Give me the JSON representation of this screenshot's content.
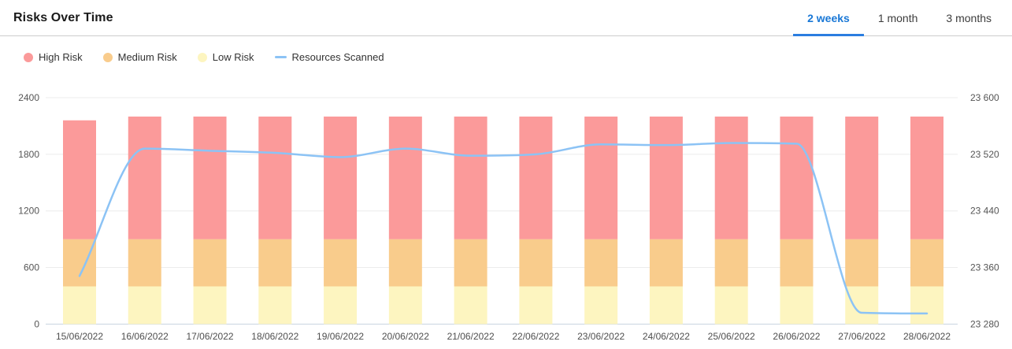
{
  "header": {
    "title": "Risks Over Time",
    "tabs": [
      {
        "label": "2 weeks",
        "active": true
      },
      {
        "label": "1 month",
        "active": false
      },
      {
        "label": "3 months",
        "active": false
      }
    ]
  },
  "legend": [
    {
      "label": "High Risk",
      "type": "circle",
      "color": "#fb9a9a"
    },
    {
      "label": "Medium Risk",
      "type": "circle",
      "color": "#f9cc8c"
    },
    {
      "label": "Low Risk",
      "type": "circle",
      "color": "#fdf5c0"
    },
    {
      "label": "Resources Scanned",
      "type": "line",
      "color": "#8cc3f5"
    }
  ],
  "colors": {
    "high_risk": "#fb9a9a",
    "medium_risk": "#f9cc8c",
    "low_risk": "#fdf5c0",
    "line": "#8cc3f5",
    "grid": "#ececec",
    "zero_line": "#c8d2e0",
    "active_tab": "#1877d6"
  },
  "chart_data": {
    "type": "bar",
    "subtype": "stacked-bars-with-line-overlay",
    "categories": [
      "15/06/2022",
      "16/06/2022",
      "17/06/2022",
      "18/06/2022",
      "19/06/2022",
      "20/06/2022",
      "21/06/2022",
      "22/06/2022",
      "23/06/2022",
      "24/06/2022",
      "25/06/2022",
      "26/06/2022",
      "27/06/2022",
      "28/06/2022"
    ],
    "series": [
      {
        "name": "Low Risk",
        "color": "#fdf5c0",
        "values": [
          400,
          400,
          400,
          400,
          400,
          400,
          400,
          400,
          400,
          400,
          400,
          400,
          400,
          400
        ]
      },
      {
        "name": "Medium Risk",
        "color": "#f9cc8c",
        "values": [
          500,
          500,
          500,
          500,
          500,
          500,
          500,
          500,
          500,
          500,
          500,
          500,
          500,
          500
        ]
      },
      {
        "name": "High Risk",
        "color": "#fb9a9a",
        "values": [
          1260,
          1300,
          1300,
          1300,
          1300,
          1300,
          1300,
          1300,
          1300,
          1300,
          1300,
          1300,
          1300,
          1300
        ]
      }
    ],
    "line_series": {
      "name": "Resources Scanned",
      "color": "#8cc3f5",
      "axis": "right",
      "values": [
        23348,
        23528,
        23525,
        23522,
        23516,
        23528,
        23518,
        23520,
        23534,
        23533,
        23536,
        23535,
        23296,
        23295
      ]
    },
    "left_axis": {
      "range": [
        0,
        2400
      ],
      "ticks": [
        0,
        600,
        1200,
        1800,
        2400
      ]
    },
    "right_axis": {
      "range": [
        23280,
        23600
      ],
      "ticks": [
        23280,
        23360,
        23440,
        23520,
        23600
      ],
      "tick_labels": [
        "23 280",
        "23 360",
        "23 440",
        "23 520",
        "23 600"
      ]
    },
    "grid": true,
    "legend_position": "top-left",
    "title": "Risks Over Time"
  }
}
